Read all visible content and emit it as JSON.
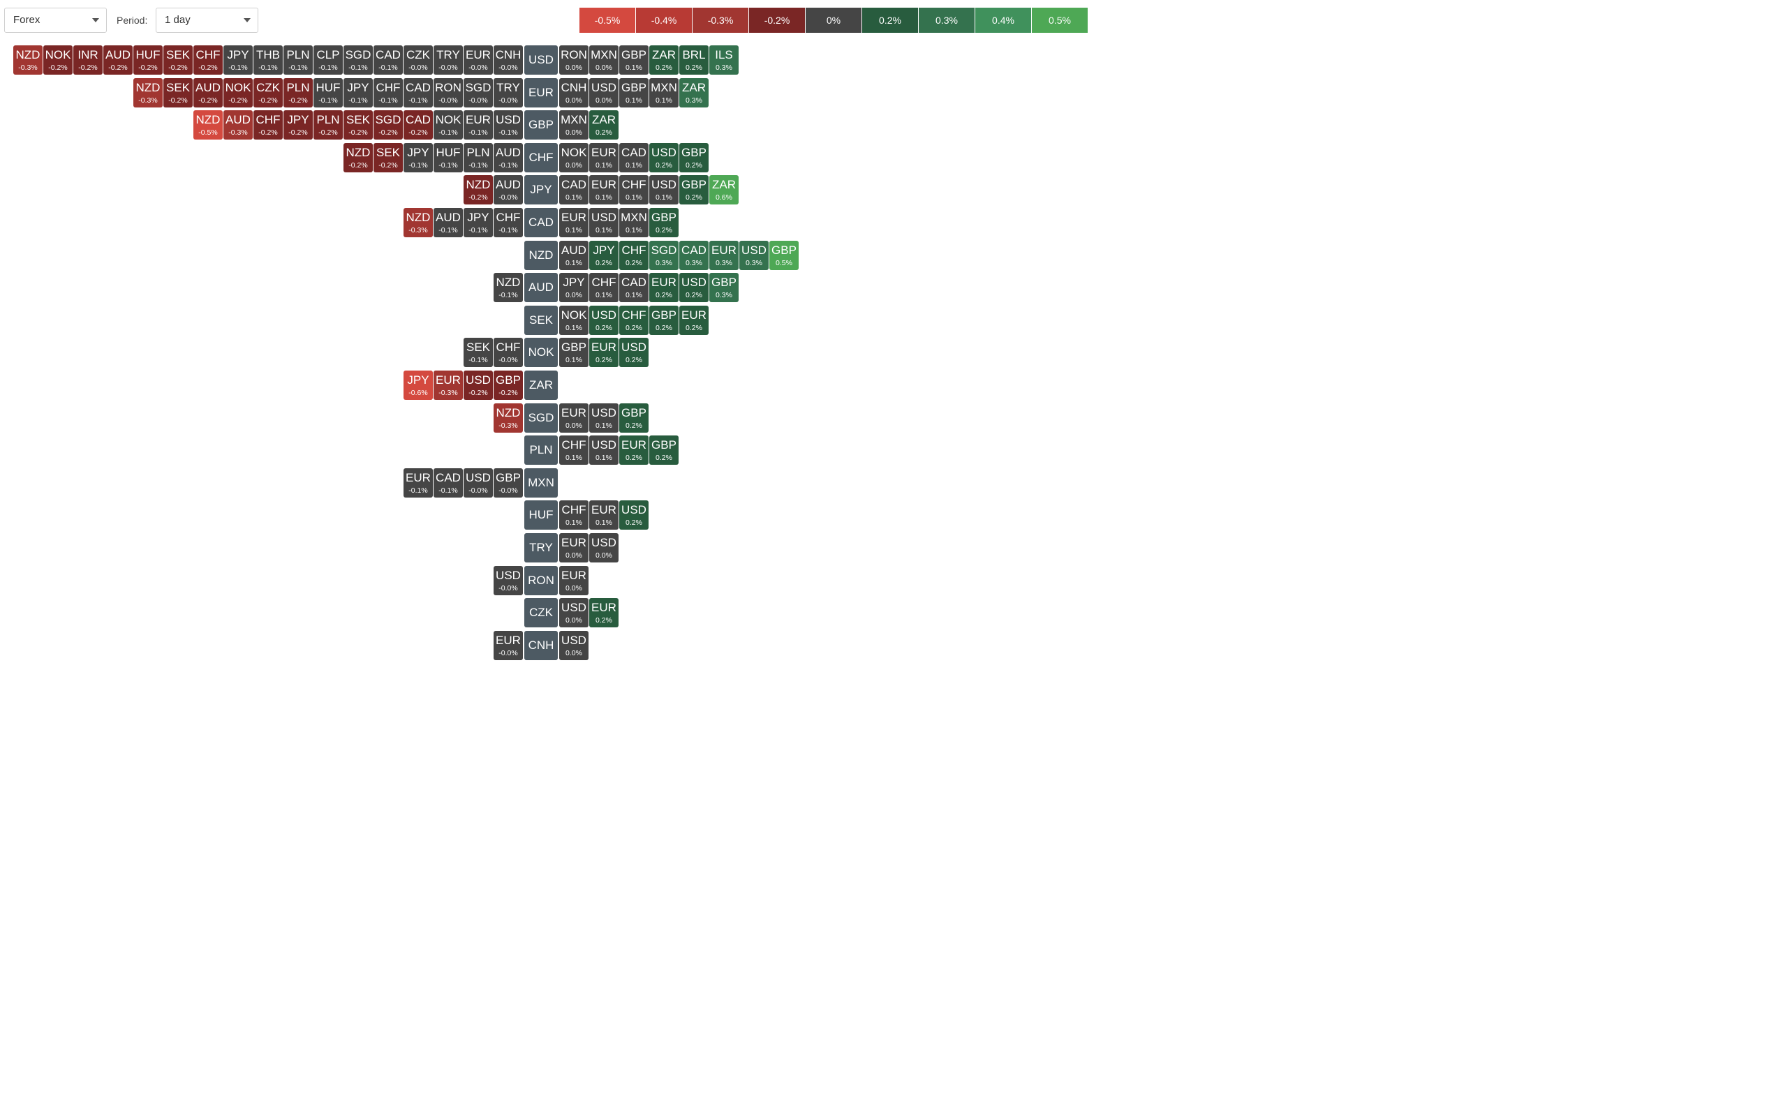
{
  "controls": {
    "market": "Forex",
    "period_label": "Period:",
    "period": "1 day"
  },
  "legend": [
    {
      "label": "-0.5%",
      "color": "#d4493f"
    },
    {
      "label": "-0.4%",
      "color": "#b83a34"
    },
    {
      "label": "-0.3%",
      "color": "#a13631"
    },
    {
      "label": "-0.2%",
      "color": "#7a2625"
    },
    {
      "label": "0%",
      "color": "#454545"
    },
    {
      "label": "0.2%",
      "color": "#285c3e"
    },
    {
      "label": "0.3%",
      "color": "#34724e"
    },
    {
      "label": "0.4%",
      "color": "#40915c"
    },
    {
      "label": "0.5%",
      "color": "#4ea855"
    }
  ],
  "rows": [
    {
      "base": "USD",
      "left": [
        [
          "NZD",
          "-0.3%"
        ],
        [
          "NOK",
          "-0.2%"
        ],
        [
          "INR",
          "-0.2%"
        ],
        [
          "AUD",
          "-0.2%"
        ],
        [
          "HUF",
          "-0.2%"
        ],
        [
          "SEK",
          "-0.2%"
        ],
        [
          "CHF",
          "-0.2%"
        ],
        [
          "JPY",
          "-0.1%"
        ],
        [
          "THB",
          "-0.1%"
        ],
        [
          "PLN",
          "-0.1%"
        ],
        [
          "CLP",
          "-0.1%"
        ],
        [
          "SGD",
          "-0.1%"
        ],
        [
          "CAD",
          "-0.1%"
        ],
        [
          "CZK",
          "-0.0%"
        ],
        [
          "TRY",
          "-0.0%"
        ],
        [
          "EUR",
          "-0.0%"
        ],
        [
          "CNH",
          "-0.0%"
        ]
      ],
      "right": [
        [
          "RON",
          "0.0%"
        ],
        [
          "MXN",
          "0.0%"
        ],
        [
          "GBP",
          "0.1%"
        ],
        [
          "ZAR",
          "0.2%"
        ],
        [
          "BRL",
          "0.2%"
        ],
        [
          "ILS",
          "0.3%"
        ]
      ]
    },
    {
      "base": "EUR",
      "left": [
        [
          "NZD",
          "-0.3%"
        ],
        [
          "SEK",
          "-0.2%"
        ],
        [
          "AUD",
          "-0.2%"
        ],
        [
          "NOK",
          "-0.2%"
        ],
        [
          "CZK",
          "-0.2%"
        ],
        [
          "PLN",
          "-0.2%"
        ],
        [
          "HUF",
          "-0.1%"
        ],
        [
          "JPY",
          "-0.1%"
        ],
        [
          "CHF",
          "-0.1%"
        ],
        [
          "CAD",
          "-0.1%"
        ],
        [
          "RON",
          "-0.0%"
        ],
        [
          "SGD",
          "-0.0%"
        ],
        [
          "TRY",
          "-0.0%"
        ]
      ],
      "right": [
        [
          "CNH",
          "0.0%"
        ],
        [
          "USD",
          "0.0%"
        ],
        [
          "GBP",
          "0.1%"
        ],
        [
          "MXN",
          "0.1%"
        ],
        [
          "ZAR",
          "0.3%"
        ]
      ]
    },
    {
      "base": "GBP",
      "left": [
        [
          "NZD",
          "-0.5%"
        ],
        [
          "AUD",
          "-0.3%"
        ],
        [
          "CHF",
          "-0.2%"
        ],
        [
          "JPY",
          "-0.2%"
        ],
        [
          "PLN",
          "-0.2%"
        ],
        [
          "SEK",
          "-0.2%"
        ],
        [
          "SGD",
          "-0.2%"
        ],
        [
          "CAD",
          "-0.2%"
        ],
        [
          "NOK",
          "-0.1%"
        ],
        [
          "EUR",
          "-0.1%"
        ],
        [
          "USD",
          "-0.1%"
        ]
      ],
      "right": [
        [
          "MXN",
          "0.0%"
        ],
        [
          "ZAR",
          "0.2%"
        ]
      ]
    },
    {
      "base": "CHF",
      "left": [
        [
          "NZD",
          "-0.2%"
        ],
        [
          "SEK",
          "-0.2%"
        ],
        [
          "JPY",
          "-0.1%"
        ],
        [
          "HUF",
          "-0.1%"
        ],
        [
          "PLN",
          "-0.1%"
        ],
        [
          "AUD",
          "-0.1%"
        ]
      ],
      "right": [
        [
          "NOK",
          "0.0%"
        ],
        [
          "EUR",
          "0.1%"
        ],
        [
          "CAD",
          "0.1%"
        ],
        [
          "USD",
          "0.2%"
        ],
        [
          "GBP",
          "0.2%"
        ]
      ]
    },
    {
      "base": "JPY",
      "left": [
        [
          "NZD",
          "-0.2%"
        ],
        [
          "AUD",
          "-0.0%"
        ]
      ],
      "right": [
        [
          "CAD",
          "0.1%"
        ],
        [
          "EUR",
          "0.1%"
        ],
        [
          "CHF",
          "0.1%"
        ],
        [
          "USD",
          "0.1%"
        ],
        [
          "GBP",
          "0.2%"
        ],
        [
          "ZAR",
          "0.6%"
        ]
      ]
    },
    {
      "base": "CAD",
      "left": [
        [
          "NZD",
          "-0.3%"
        ],
        [
          "AUD",
          "-0.1%"
        ],
        [
          "JPY",
          "-0.1%"
        ],
        [
          "CHF",
          "-0.1%"
        ]
      ],
      "right": [
        [
          "EUR",
          "0.1%"
        ],
        [
          "USD",
          "0.1%"
        ],
        [
          "MXN",
          "0.1%"
        ],
        [
          "GBP",
          "0.2%"
        ]
      ]
    },
    {
      "base": "NZD",
      "left": [],
      "right": [
        [
          "AUD",
          "0.1%"
        ],
        [
          "JPY",
          "0.2%"
        ],
        [
          "CHF",
          "0.2%"
        ],
        [
          "SGD",
          "0.3%"
        ],
        [
          "CAD",
          "0.3%"
        ],
        [
          "EUR",
          "0.3%"
        ],
        [
          "USD",
          "0.3%"
        ],
        [
          "GBP",
          "0.5%"
        ]
      ]
    },
    {
      "base": "AUD",
      "left": [
        [
          "NZD",
          "-0.1%"
        ]
      ],
      "right": [
        [
          "JPY",
          "0.0%"
        ],
        [
          "CHF",
          "0.1%"
        ],
        [
          "CAD",
          "0.1%"
        ],
        [
          "EUR",
          "0.2%"
        ],
        [
          "USD",
          "0.2%"
        ],
        [
          "GBP",
          "0.3%"
        ]
      ]
    },
    {
      "base": "SEK",
      "left": [],
      "right": [
        [
          "NOK",
          "0.1%"
        ],
        [
          "USD",
          "0.2%"
        ],
        [
          "CHF",
          "0.2%"
        ],
        [
          "GBP",
          "0.2%"
        ],
        [
          "EUR",
          "0.2%"
        ]
      ]
    },
    {
      "base": "NOK",
      "left": [
        [
          "SEK",
          "-0.1%"
        ],
        [
          "CHF",
          "-0.0%"
        ]
      ],
      "right": [
        [
          "GBP",
          "0.1%"
        ],
        [
          "EUR",
          "0.2%"
        ],
        [
          "USD",
          "0.2%"
        ]
      ]
    },
    {
      "base": "ZAR",
      "left": [
        [
          "JPY",
          "-0.6%"
        ],
        [
          "EUR",
          "-0.3%"
        ],
        [
          "USD",
          "-0.2%"
        ],
        [
          "GBP",
          "-0.2%"
        ]
      ],
      "right": []
    },
    {
      "base": "SGD",
      "left": [
        [
          "NZD",
          "-0.3%"
        ]
      ],
      "right": [
        [
          "EUR",
          "0.0%"
        ],
        [
          "USD",
          "0.1%"
        ],
        [
          "GBP",
          "0.2%"
        ]
      ]
    },
    {
      "base": "PLN",
      "left": [],
      "right": [
        [
          "CHF",
          "0.1%"
        ],
        [
          "USD",
          "0.1%"
        ],
        [
          "EUR",
          "0.2%"
        ],
        [
          "GBP",
          "0.2%"
        ]
      ]
    },
    {
      "base": "MXN",
      "left": [
        [
          "EUR",
          "-0.1%"
        ],
        [
          "CAD",
          "-0.1%"
        ],
        [
          "USD",
          "-0.0%"
        ],
        [
          "GBP",
          "-0.0%"
        ]
      ],
      "right": []
    },
    {
      "base": "HUF",
      "left": [],
      "right": [
        [
          "CHF",
          "0.1%"
        ],
        [
          "EUR",
          "0.1%"
        ],
        [
          "USD",
          "0.2%"
        ]
      ]
    },
    {
      "base": "TRY",
      "left": [],
      "right": [
        [
          "EUR",
          "0.0%"
        ],
        [
          "USD",
          "0.0%"
        ]
      ]
    },
    {
      "base": "RON",
      "left": [
        [
          "USD",
          "-0.0%"
        ]
      ],
      "right": [
        [
          "EUR",
          "0.0%"
        ]
      ]
    },
    {
      "base": "CZK",
      "left": [],
      "right": [
        [
          "USD",
          "0.0%"
        ],
        [
          "EUR",
          "0.2%"
        ]
      ]
    },
    {
      "base": "CNH",
      "left": [
        [
          "EUR",
          "-0.0%"
        ]
      ],
      "right": [
        [
          "USD",
          "0.0%"
        ]
      ]
    }
  ]
}
